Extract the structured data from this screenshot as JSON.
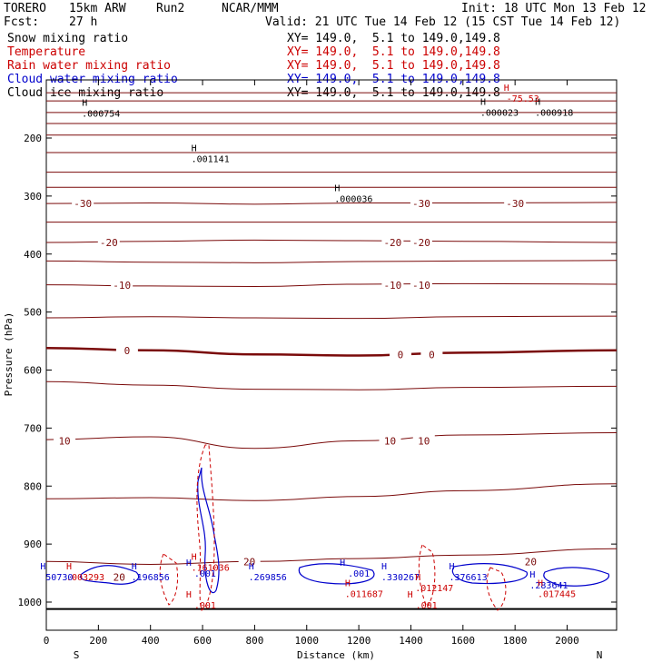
{
  "header": {
    "model": "TORERO",
    "resolution": "15km ARW",
    "run": "Run2",
    "center": "NCAR/MMM",
    "init": "Init: 18 UTC Mon 13 Feb 12",
    "fcst_label": "Fcst:",
    "fcst_value": "27 h",
    "valid": "Valid: 21 UTC Tue 14 Feb 12 (15 CST Tue 14 Feb 12)"
  },
  "fields": [
    {
      "name": "Snow mixing ratio",
      "xy": "XY= 149.0,  5.1 to 149.0,149.8",
      "color": "#000000"
    },
    {
      "name": "Temperature",
      "xy": "XY= 149.0,  5.1 to 149.0,149.8",
      "color": "#cc0000"
    },
    {
      "name": "Rain water mixing ratio",
      "xy": "XY= 149.0,  5.1 to 149.0,149.8",
      "color": "#cc0000"
    },
    {
      "name": "Cloud water mixing ratio",
      "xy": "XY= 149.0,  5.1 to 149.0,149.8",
      "color": "#0000cc"
    },
    {
      "name": "Cloud ice mixing ratio",
      "xy": "XY= 149.0,  5.1 to 149.0,149.8",
      "color": "#000000"
    }
  ],
  "chart_data": {
    "type": "contour_cross_section",
    "xlabel": "Distance (km)",
    "ylabel": "Pressure (hPa)",
    "xlim": [
      0,
      2190
    ],
    "ylim": [
      1050,
      100
    ],
    "x_ticks": [
      0,
      200,
      400,
      600,
      800,
      1000,
      1200,
      1400,
      1600,
      1800,
      2000
    ],
    "y_ticks": [
      200,
      300,
      400,
      500,
      600,
      700,
      800,
      900,
      1000
    ],
    "endpoint_labels": {
      "left": "S",
      "right": "N"
    },
    "temperature_contours": [
      {
        "level": -70,
        "p": [
          122,
          122,
          122,
          122,
          122,
          122
        ]
      },
      {
        "level": -65,
        "p": [
          136,
          136,
          136,
          136,
          136,
          136
        ]
      },
      {
        "level": -60,
        "p": [
          156,
          156,
          156,
          156,
          156,
          156
        ]
      },
      {
        "level": -55,
        "p": [
          175,
          175,
          175,
          175,
          175,
          175
        ]
      },
      {
        "level": -50,
        "p": [
          195,
          195,
          195,
          195,
          195,
          195
        ]
      },
      {
        "level": -45,
        "p": [
          225,
          225,
          225,
          225,
          225,
          225
        ]
      },
      {
        "level": -40,
        "p": [
          259,
          259,
          259,
          259,
          259,
          259
        ]
      },
      {
        "level": -35,
        "p": [
          285,
          285,
          285,
          285,
          285,
          285
        ]
      },
      {
        "level": -30,
        "p": [
          313,
          312,
          314,
          312,
          312,
          311
        ]
      },
      {
        "level": -25,
        "p": [
          345,
          345,
          345,
          345,
          345,
          345
        ]
      },
      {
        "level": -20,
        "p": [
          380,
          378,
          376,
          377,
          378,
          380
        ]
      },
      {
        "level": -15,
        "p": [
          412,
          414,
          415,
          413,
          412,
          411
        ]
      },
      {
        "level": -10,
        "p": [
          453,
          455,
          456,
          452,
          451,
          452
        ]
      },
      {
        "level": -5,
        "p": [
          510,
          508,
          510,
          511,
          508,
          507
        ]
      },
      {
        "level": 0,
        "p": [
          562,
          566,
          573,
          575,
          570,
          566
        ]
      },
      {
        "level": 5,
        "p": [
          620,
          626,
          633,
          634,
          630,
          628
        ]
      },
      {
        "level": 10,
        "p": [
          720,
          715,
          735,
          722,
          712,
          708
        ]
      },
      {
        "level": 15,
        "p": [
          822,
          820,
          825,
          818,
          808,
          796
        ]
      },
      {
        "level": 20,
        "p": [
          930,
          935,
          930,
          925,
          919,
          908
        ]
      }
    ],
    "temperature_x": [
      0,
      400,
      800,
      1200,
      1600,
      2190
    ],
    "temperature_labels": [
      {
        "text": "-30",
        "x": 140,
        "p": 313
      },
      {
        "text": "-30",
        "x": 1440,
        "p": 313
      },
      {
        "text": "-30",
        "x": 1800,
        "p": 313
      },
      {
        "text": "-20",
        "x": 240,
        "p": 380
      },
      {
        "text": "-20",
        "x": 1330,
        "p": 380
      },
      {
        "text": "-20",
        "x": 1440,
        "p": 380
      },
      {
        "text": "-10",
        "x": 290,
        "p": 454
      },
      {
        "text": "-10",
        "x": 1330,
        "p": 454
      },
      {
        "text": "-10",
        "x": 1440,
        "p": 454
      },
      {
        "text": "0",
        "x": 310,
        "p": 566
      },
      {
        "text": "0",
        "x": 1360,
        "p": 573
      },
      {
        "text": "0",
        "x": 1480,
        "p": 573
      },
      {
        "text": "10",
        "x": 70,
        "p": 722
      },
      {
        "text": "10",
        "x": 1320,
        "p": 722
      },
      {
        "text": "10",
        "x": 1450,
        "p": 722
      },
      {
        "text": "20",
        "x": 780,
        "p": 930
      },
      {
        "text": "20",
        "x": 280,
        "p": 957
      },
      {
        "text": "20",
        "x": 1860,
        "p": 930
      }
    ],
    "maxima_labels": [
      {
        "text": ".000754",
        "x": 210,
        "p": 157,
        "color": "#000000"
      },
      {
        "text": ".001141",
        "x": 630,
        "p": 235,
        "color": "#000000"
      },
      {
        "text": ".000036",
        "x": 1180,
        "p": 304,
        "color": "#000000"
      },
      {
        "text": ".000023",
        "x": 1740,
        "p": 155,
        "color": "#000000"
      },
      {
        "text": ".000918",
        "x": 1950,
        "p": 155,
        "color": "#000000"
      },
      {
        "text": "-75.53",
        "x": 1830,
        "p": 131,
        "color": "#cc0000"
      },
      {
        "text": ".161036",
        "x": 630,
        "p": 940,
        "color": "#cc0000"
      },
      {
        "text": ".003293",
        "x": 150,
        "p": 956,
        "color": "#cc0000"
      },
      {
        "text": "50730",
        "x": 50,
        "p": 956,
        "color": "#0000cc"
      },
      {
        "text": ".196856",
        "x": 400,
        "p": 956,
        "color": "#0000cc"
      },
      {
        "text": ".001",
        "x": 610,
        "p": 950,
        "color": "#0000cc"
      },
      {
        "text": ".269856",
        "x": 850,
        "p": 956,
        "color": "#0000cc"
      },
      {
        "text": ".001",
        "x": 1200,
        "p": 950,
        "color": "#0000cc"
      },
      {
        "text": ".330267",
        "x": 1360,
        "p": 956,
        "color": "#0000cc"
      },
      {
        "text": ".376613",
        "x": 1620,
        "p": 956,
        "color": "#0000cc"
      },
      {
        "text": ".011687",
        "x": 1220,
        "p": 985,
        "color": "#cc0000"
      },
      {
        "text": ".012147",
        "x": 1490,
        "p": 975,
        "color": "#cc0000"
      },
      {
        "text": ".283641",
        "x": 1930,
        "p": 970,
        "color": "#0000cc"
      },
      {
        "text": ".017445",
        "x": 1960,
        "p": 985,
        "color": "#cc0000"
      },
      {
        "text": ".001",
        "x": 610,
        "p": 1005,
        "color": "#cc0000"
      },
      {
        "text": ".001",
        "x": 1460,
        "p": 1005,
        "color": "#cc0000"
      }
    ],
    "surface_pressure": 1012
  }
}
